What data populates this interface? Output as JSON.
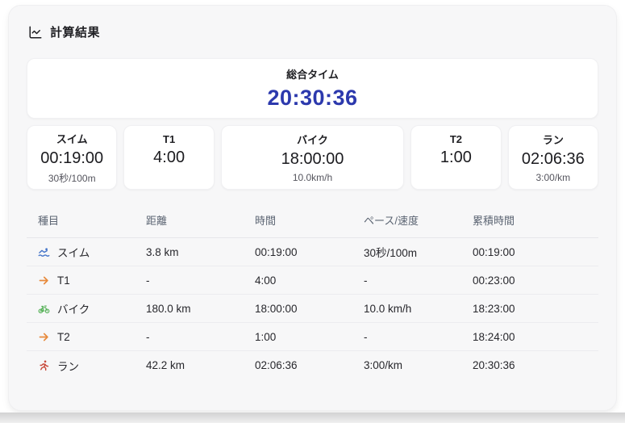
{
  "colors": {
    "accent_total": "#2c39ad",
    "swim_icon": "#4273c8",
    "transition_icon": "#e78a3c",
    "bike_icon": "#4fae51",
    "run_icon": "#c8493a"
  },
  "header": {
    "title": "計算結果",
    "icon": "chart-line-icon"
  },
  "total": {
    "label": "総合タイム",
    "value": "20:30:36"
  },
  "summary_cards": [
    {
      "label": "スイム",
      "value": "00:19:00",
      "sub": "30秒/100m",
      "wide": false
    },
    {
      "label": "T1",
      "value": "4:00",
      "sub": "",
      "wide": false
    },
    {
      "label": "バイク",
      "value": "18:00:00",
      "sub": "10.0km/h",
      "wide": true
    },
    {
      "label": "T2",
      "value": "1:00",
      "sub": "",
      "wide": false
    },
    {
      "label": "ラン",
      "value": "02:06:36",
      "sub": "3:00/km",
      "wide": false
    }
  ],
  "table": {
    "columns": [
      "種目",
      "距離",
      "時間",
      "ペース/速度",
      "累積時間"
    ],
    "rows": [
      {
        "icon": "swimmer-icon",
        "icon_color": "#4273c8",
        "name": "スイム",
        "distance": "3.8 km",
        "time": "00:19:00",
        "pace": "30秒/100m",
        "cumulative": "00:19:00"
      },
      {
        "icon": "transition-arrow-icon",
        "icon_color": "#e78a3c",
        "name": "T1",
        "distance": "-",
        "time": "4:00",
        "pace": "-",
        "cumulative": "00:23:00"
      },
      {
        "icon": "bicycle-icon",
        "icon_color": "#4fae51",
        "name": "バイク",
        "distance": "180.0 km",
        "time": "18:00:00",
        "pace": "10.0 km/h",
        "cumulative": "18:23:00"
      },
      {
        "icon": "transition-arrow-icon",
        "icon_color": "#e78a3c",
        "name": "T2",
        "distance": "-",
        "time": "1:00",
        "pace": "-",
        "cumulative": "18:24:00"
      },
      {
        "icon": "runner-icon",
        "icon_color": "#c8493a",
        "name": "ラン",
        "distance": "42.2 km",
        "time": "02:06:36",
        "pace": "3:00/km",
        "cumulative": "20:30:36"
      }
    ]
  }
}
